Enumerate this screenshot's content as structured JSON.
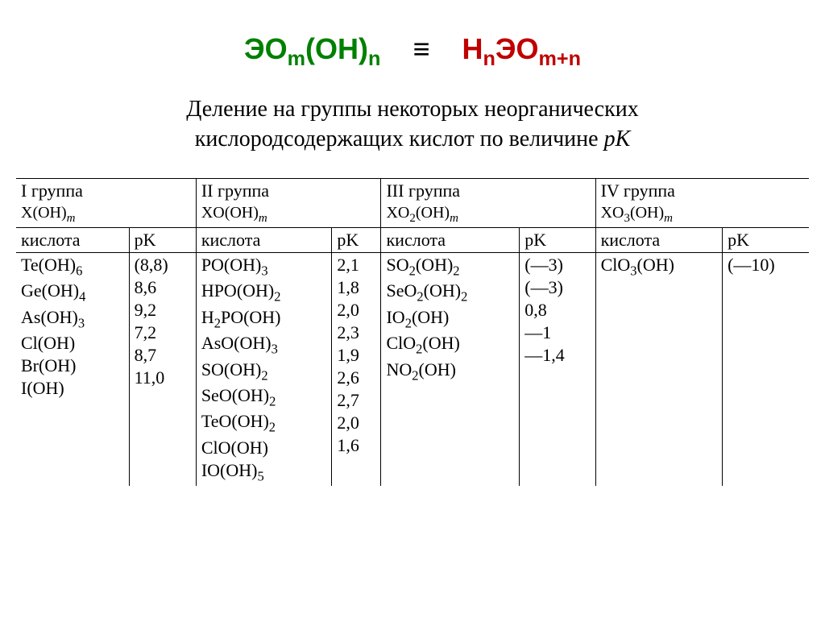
{
  "formula": {
    "left_html": "ЭО<sub>m</sub>(OH)<sub>n</sub>",
    "equiv": "≡",
    "right_html": "H<sub>n</sub>ЭО<sub>m+n</sub>",
    "left_color": "#008000",
    "right_color": "#c00000"
  },
  "caption": {
    "line1": "Деление на группы некоторых неорганических",
    "line2_a": "кислородсодержащих кислот по величине ",
    "line2_pk": "pK"
  },
  "headers": {
    "acid_label": "кислота",
    "pk_label": "pK"
  },
  "groups": [
    {
      "title": "I группа",
      "formula_html": "X(OH)<sub><span class=\"italic-m\">m</span></sub>",
      "rows": [
        {
          "acid_html": "Te(OH)<sub>6</sub>",
          "pk": "(8,8)"
        },
        {
          "acid_html": "Ge(OH)<sub>4</sub>",
          "pk": "8,6"
        },
        {
          "acid_html": "As(OH)<sub>3</sub>",
          "pk": "9,2"
        },
        {
          "acid_html": "Cl(OH)",
          "pk": "7,2"
        },
        {
          "acid_html": "Br(OH)",
          "pk": "8,7"
        },
        {
          "acid_html": "I(OH)",
          "pk": "11,0"
        }
      ]
    },
    {
      "title": "II группа",
      "formula_html": "XO(OH)<sub><span class=\"italic-m\">m</span></sub>",
      "rows": [
        {
          "acid_html": "PO(OH)<sub>3</sub>",
          "pk": "2,1"
        },
        {
          "acid_html": "HPO(OH)<sub>2</sub>",
          "pk": "1,8"
        },
        {
          "acid_html": "H<sub>2</sub>PO(OH)",
          "pk": "2,0"
        },
        {
          "acid_html": "AsO(OH)<sub>3</sub>",
          "pk": "2,3"
        },
        {
          "acid_html": "SO(OH)<sub>2</sub>",
          "pk": "1,9"
        },
        {
          "acid_html": "SeO(OH)<sub>2</sub>",
          "pk": "2,6"
        },
        {
          "acid_html": "TeO(OH)<sub>2</sub>",
          "pk": "2,7"
        },
        {
          "acid_html": "ClO(OH)",
          "pk": "2,0"
        },
        {
          "acid_html": "IO(OH)<sub>5</sub>",
          "pk": "1,6"
        }
      ]
    },
    {
      "title": "III группа",
      "formula_html": "XO<sub>2</sub>(OH)<sub><span class=\"italic-m\">m</span></sub>",
      "rows": [
        {
          "acid_html": "SO<sub>2</sub>(OH)<sub>2</sub>",
          "pk": "(—3)"
        },
        {
          "acid_html": "SeO<sub>2</sub>(OH)<sub>2</sub>",
          "pk": "(—3)"
        },
        {
          "acid_html": "IO<sub>2</sub>(OH)",
          "pk": "0,8"
        },
        {
          "acid_html": "ClO<sub>2</sub>(OH)",
          "pk": "—1"
        },
        {
          "acid_html": "NO<sub>2</sub>(OH)",
          "pk": "—1,4"
        }
      ]
    },
    {
      "title": "IV группа",
      "formula_html": "XO<sub>3</sub>(OH)<sub><span class=\"italic-m\">m</span></sub>",
      "rows": [
        {
          "acid_html": "ClO<sub>3</sub>(OH)",
          "pk": "(—10)"
        }
      ]
    }
  ],
  "style": {
    "background_color": "#ffffff",
    "text_color": "#000000",
    "rule_color": "#000000",
    "body_fontsize": 22,
    "caption_fontsize": 28,
    "formula_fontsize": 36
  }
}
